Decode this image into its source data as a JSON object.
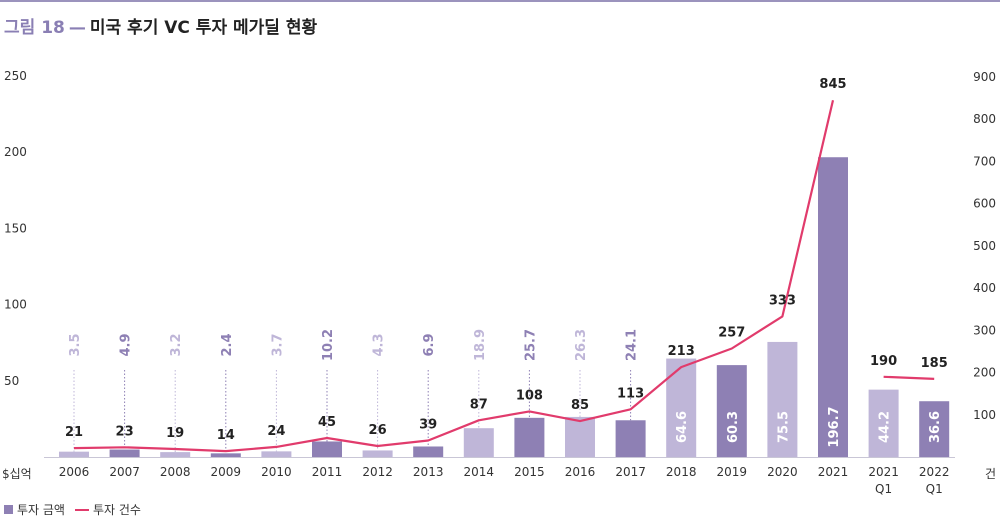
{
  "header": {
    "figure_label": "그림 18",
    "separator": "—",
    "title": "미국 후기 VC 투자 메가딜 현황"
  },
  "legend": {
    "bar_label": "투자 금액",
    "line_label": "투자 건수"
  },
  "colors": {
    "bar_dark": "#8e80b4",
    "bar_light": "#bfb6d8",
    "line": "#e13b6c",
    "label_dark": "#8e80b4",
    "label_light": "#bfb6d8",
    "axis_text": "#333333"
  },
  "chart_data": {
    "type": "bar",
    "title": "미국 후기 VC 투자 메가딜 현황",
    "categories": [
      "2006",
      "2007",
      "2008",
      "2009",
      "2010",
      "2011",
      "2012",
      "2013",
      "2014",
      "2015",
      "2016",
      "2017",
      "2018",
      "2019",
      "2020",
      "2021",
      "2021\nQ1",
      "2022\nQ1"
    ],
    "left_axis": {
      "unit_label": "$십억",
      "ylim": [
        0,
        250
      ],
      "ticks": [
        50,
        100,
        150,
        200,
        250
      ]
    },
    "right_axis": {
      "unit_label": "건",
      "ylim": [
        0,
        900
      ],
      "ticks": [
        100,
        200,
        300,
        400,
        500,
        600,
        700,
        800,
        900
      ]
    },
    "series": [
      {
        "name": "투자 금액",
        "type": "bar",
        "axis": "left",
        "values": [
          3.5,
          4.9,
          3.2,
          2.4,
          3.7,
          10.2,
          4.3,
          6.9,
          18.9,
          25.7,
          26.3,
          24.1,
          64.6,
          60.3,
          75.5,
          196.7,
          44.2,
          36.6
        ],
        "shades": [
          "light",
          "dark",
          "light",
          "dark",
          "light",
          "dark",
          "light",
          "dark",
          "light",
          "dark",
          "light",
          "dark",
          "light",
          "dark",
          "light",
          "dark",
          "light",
          "dark"
        ]
      },
      {
        "name": "투자 건수",
        "type": "line",
        "axis": "right",
        "values": [
          21,
          23,
          19,
          14,
          24,
          45,
          26,
          39,
          87,
          108,
          85,
          113,
          213,
          257,
          333,
          845,
          190,
          185
        ],
        "segments": [
          [
            0,
            15
          ],
          [
            16,
            17
          ]
        ]
      }
    ],
    "grid": false,
    "legend_position": "bottom-left"
  }
}
